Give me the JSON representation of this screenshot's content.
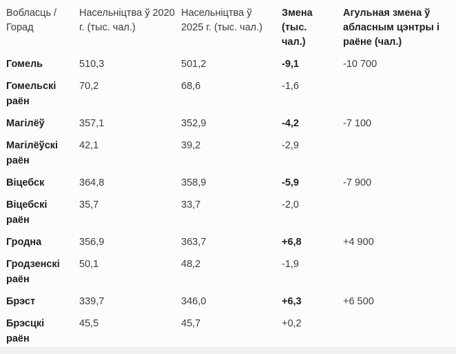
{
  "colors": {
    "background": "#fcfcfc",
    "text_regular": "#3b3b3b",
    "text_bold": "#1f1f1f",
    "bottom_strip": "#f0f0f0"
  },
  "chart_data": {
    "type": "table",
    "columns": [
      "Вобласць / Горад",
      "Насельніцтва ў 2020 г. (тыс. чал.)",
      "Насельніцтва ў 2025 г. (тыс. чал.)",
      "Змена (тыс. чал.)",
      "Агульная змена ў абласным цэнтры і раёне (чал.)"
    ],
    "rows": [
      {
        "name": "Гомель",
        "pop2020": "510,3",
        "pop2025": "501,2",
        "change": "-9,1",
        "total_change": "-10 700",
        "type": "city"
      },
      {
        "name": "Гомельскі раён",
        "pop2020": "70,2",
        "pop2025": "68,6",
        "change": "-1,6",
        "total_change": "",
        "type": "district"
      },
      {
        "name": "Магілёў",
        "pop2020": "357,1",
        "pop2025": "352,9",
        "change": "-4,2",
        "total_change": "-7 100",
        "type": "city"
      },
      {
        "name": "Магілёўскі раён",
        "pop2020": "42,1",
        "pop2025": "39,2",
        "change": "-2,9",
        "total_change": "",
        "type": "district"
      },
      {
        "name": "Віцебск",
        "pop2020": "364,8",
        "pop2025": "358,9",
        "change": "-5,9",
        "total_change": "-7 900",
        "type": "city"
      },
      {
        "name": "Віцебскі раён",
        "pop2020": "35,7",
        "pop2025": "33,7",
        "change": "-2,0",
        "total_change": "",
        "type": "district"
      },
      {
        "name": "Гродна",
        "pop2020": "356,9",
        "pop2025": "363,7",
        "change": "+6,8",
        "total_change": "+4 900",
        "type": "city"
      },
      {
        "name": "Гродзенскі раён",
        "pop2020": "50,1",
        "pop2025": "48,2",
        "change": "-1,9",
        "total_change": "",
        "type": "district"
      },
      {
        "name": "Брэст",
        "pop2020": "339,7",
        "pop2025": "346,0",
        "change": "+6,3",
        "total_change": "+6 500",
        "type": "city"
      },
      {
        "name": "Брэсцкі раён",
        "pop2020": "45,5",
        "pop2025": "45,7",
        "change": "+0,2",
        "total_change": "",
        "type": "district"
      }
    ]
  }
}
